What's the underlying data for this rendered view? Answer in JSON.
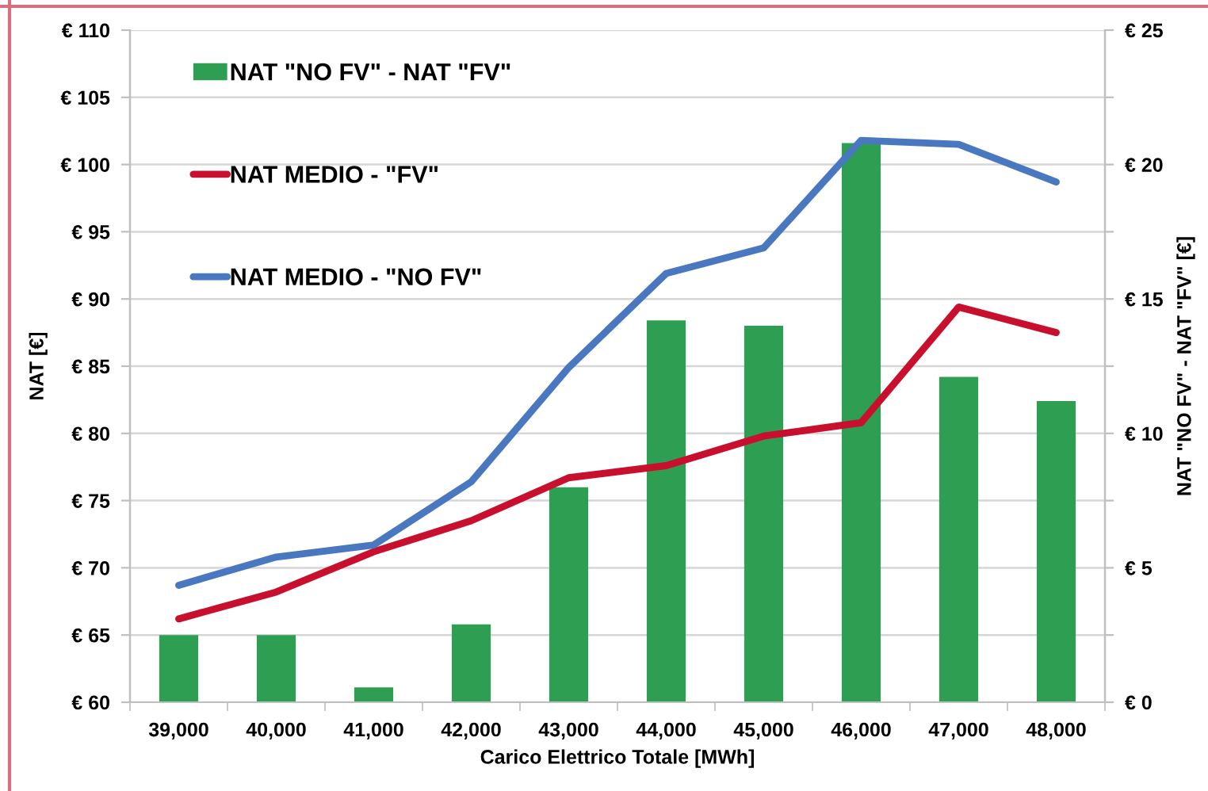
{
  "chart_data": {
    "type": "bar",
    "xlabel": "Carico Elettrico Totale [MWh]",
    "ylabel": "NAT [€]",
    "y2label": "NAT \"NO FV\" - NAT \"FV\" [€]",
    "categories": [
      "39,000",
      "40,000",
      "41,000",
      "42,000",
      "43,000",
      "44,000",
      "45,000",
      "46,000",
      "47,000",
      "48,000"
    ],
    "series": [
      {
        "name": "NAT \"NO FV\" - NAT \"FV\"",
        "axis": "y2",
        "color": "#2e9f52",
        "values": [
          2.5,
          2.5,
          0.55,
          2.9,
          8.0,
          14.2,
          14.0,
          20.8,
          12.1,
          11.2
        ]
      },
      {
        "name": "NAT MEDIO - \"FV\"",
        "type": "line",
        "color": "#c8102e",
        "values": [
          66.2,
          68.2,
          71.2,
          73.5,
          76.7,
          77.6,
          79.8,
          80.8,
          89.4,
          87.5
        ]
      },
      {
        "name": "NAT MEDIO - \"NO FV\"",
        "type": "line",
        "color": "#4a78c0",
        "values": [
          68.7,
          70.8,
          71.7,
          76.4,
          84.9,
          91.9,
          93.8,
          101.8,
          101.5,
          98.7
        ]
      }
    ],
    "ylim": [
      60,
      110
    ],
    "yticks": [
      {
        "value": 60,
        "label": "€ 60"
      },
      {
        "value": 65,
        "label": "€ 65"
      },
      {
        "value": 70,
        "label": "€ 70"
      },
      {
        "value": 75,
        "label": "€ 75"
      },
      {
        "value": 80,
        "label": "€ 80"
      },
      {
        "value": 85,
        "label": "€ 85"
      },
      {
        "value": 90,
        "label": "€ 90"
      },
      {
        "value": 95,
        "label": "€ 95"
      },
      {
        "value": 100,
        "label": "€ 100"
      },
      {
        "value": 105,
        "label": "€ 105"
      },
      {
        "value": 110,
        "label": "€ 110"
      }
    ],
    "y2lim": [
      0,
      25
    ],
    "y2ticks": [
      {
        "value": 0,
        "label": "€ 0"
      },
      {
        "value": 2.5,
        "label": null
      },
      {
        "value": 5,
        "label": "€ 5"
      },
      {
        "value": 7.5,
        "label": null
      },
      {
        "value": 10,
        "label": "€ 10"
      },
      {
        "value": 12.5,
        "label": null
      },
      {
        "value": 15,
        "label": "€ 15"
      },
      {
        "value": 17.5,
        "label": null
      },
      {
        "value": 20,
        "label": "€ 20"
      },
      {
        "value": 22.5,
        "label": null
      },
      {
        "value": 25,
        "label": "€ 25"
      }
    ],
    "grid": "y",
    "legend": "top left",
    "line_style": "solid"
  }
}
